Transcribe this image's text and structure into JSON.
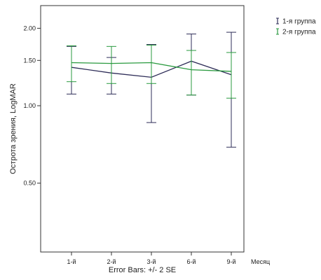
{
  "chart_data": {
    "type": "line",
    "error_bars": true,
    "categories": [
      "1-й",
      "2-й",
      "3-й",
      "6-й",
      "9-й"
    ],
    "xlabel": "Месяц",
    "ylabel": "Острота зрения, LogMAR",
    "y_scale": "log",
    "ylim": [
      0.27,
      2.45
    ],
    "yticks": [
      0.5,
      1.0,
      1.5,
      2.0
    ],
    "ytick_labels": [
      "0.50",
      "1.00",
      "1.50",
      "2.00"
    ],
    "grid": false,
    "legend_position": "top-right",
    "footnote": "Error Bars: +/- 2 SE",
    "series": [
      {
        "name": "1-я группа",
        "color": "#2e2d58",
        "values": [
          1.41,
          1.34,
          1.29,
          1.49,
          1.32
        ],
        "lower": [
          1.11,
          1.11,
          0.86,
          1.1,
          0.69
        ],
        "upper": [
          1.7,
          1.54,
          1.73,
          1.9,
          1.93
        ]
      },
      {
        "name": "2-я группа",
        "color": "#2a9a3f",
        "values": [
          1.47,
          1.46,
          1.47,
          1.38,
          1.36
        ],
        "lower": [
          1.24,
          1.22,
          1.22,
          1.1,
          1.07
        ],
        "upper": [
          1.71,
          1.7,
          1.72,
          1.64,
          1.61
        ]
      }
    ]
  }
}
